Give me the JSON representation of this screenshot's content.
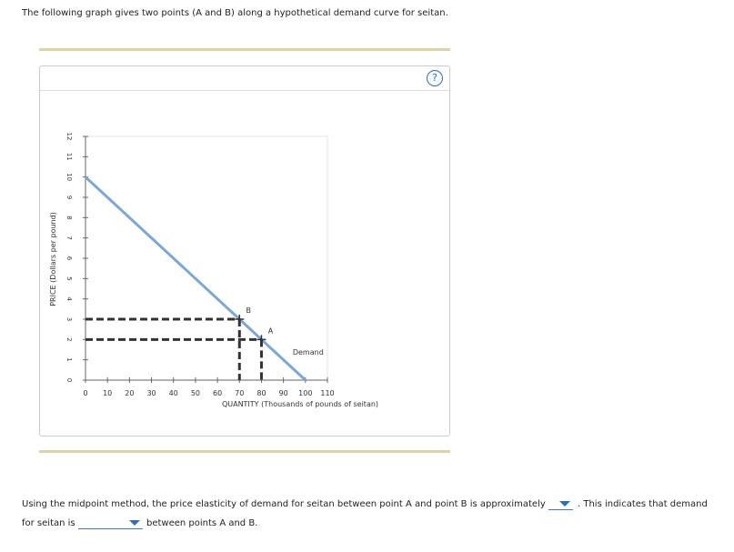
{
  "intro": "The following graph gives two points (A and B) along a hypothetical demand curve for seitan.",
  "help_icon": "?",
  "chart_data": {
    "type": "line",
    "x_label": "QUANTITY (Thousands of pounds of seitan)",
    "y_label": "PRICE (Dollars per pound)",
    "xlim": [
      0,
      110
    ],
    "ylim": [
      0,
      12
    ],
    "xticks": [
      0,
      10,
      20,
      30,
      40,
      50,
      60,
      70,
      80,
      90,
      100,
      110
    ],
    "yticks": [
      0,
      1,
      2,
      3,
      4,
      5,
      6,
      7,
      8,
      9,
      10,
      11,
      12
    ],
    "series": [
      {
        "name": "Demand",
        "color": "#7ba7d4",
        "x": [
          0,
          100
        ],
        "values": [
          10,
          0
        ]
      }
    ],
    "points": [
      {
        "label": "B",
        "x": 70,
        "y": 3
      },
      {
        "label": "A",
        "x": 80,
        "y": 2
      }
    ]
  },
  "question": {
    "part1": "Using the midpoint method, the price elasticity of demand for seitan between point A and point B is approximately",
    "part2": ". This indicates that demand",
    "part3": "for seitan is",
    "part4": "between points A and B."
  }
}
